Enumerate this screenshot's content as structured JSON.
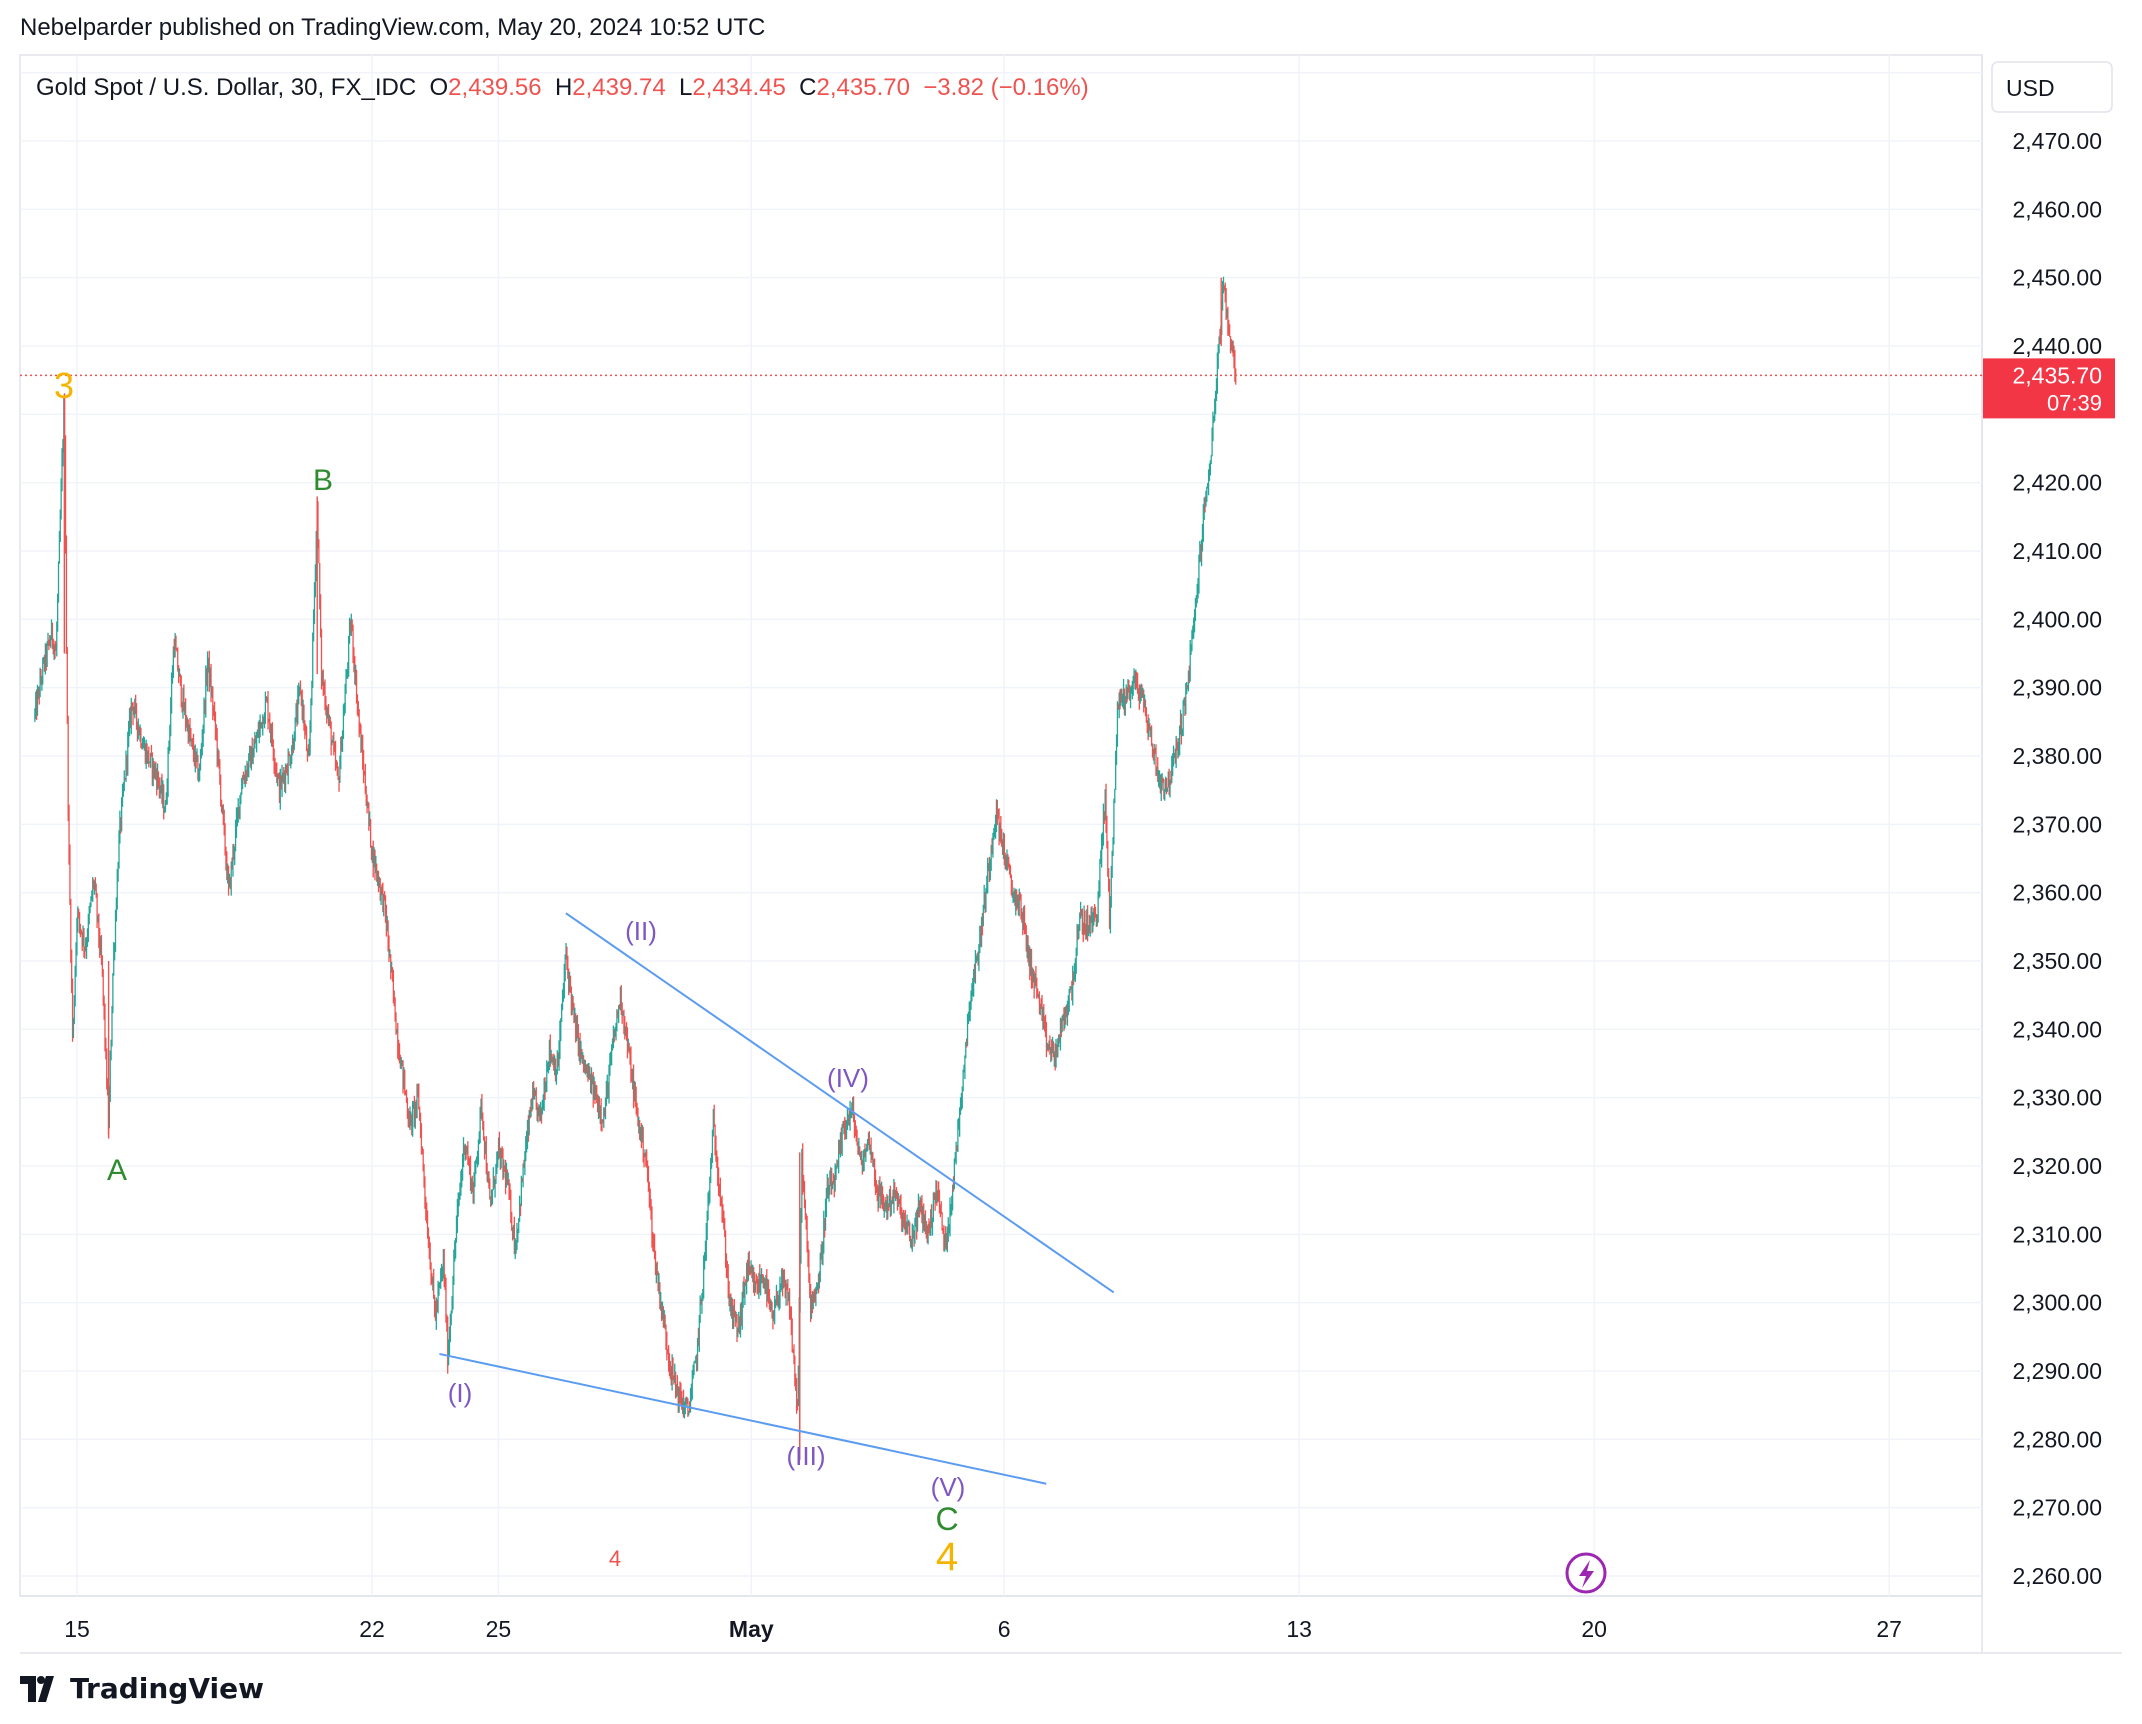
{
  "header": {
    "published_line": "Nebelparder published on TradingView.com, May 20, 2024 10:52 UTC"
  },
  "legend": {
    "symbol": "Gold Spot / U.S. Dollar, 30, FX_IDC",
    "o_label": "O",
    "o_value": "2,439.56",
    "h_label": "H",
    "h_value": "2,439.74",
    "l_label": "L",
    "l_value": "2,434.45",
    "c_label": "C",
    "c_value": "2,435.70",
    "change": "−3.82 (−0.16%)"
  },
  "currency": "USD",
  "price_tag": {
    "price": "2,435.70",
    "countdown": "07:39"
  },
  "footer": {
    "brand": "TradingView"
  },
  "colors": {
    "up": "#26a69a",
    "down": "#ef5350",
    "trendline": "#5b9cf0",
    "wave_purple": "#7e57c2",
    "wave_green": "#2e8b2e",
    "wave_orange": "#f5b400",
    "red_marker": "#ef5350"
  },
  "chart_data": {
    "type": "candlestick",
    "title": "Gold Spot / U.S. Dollar, 30, FX_IDC",
    "y_axis": {
      "min": 2258,
      "max": 2480,
      "ticks": [
        "2,470.00",
        "2,460.00",
        "2,450.00",
        "2,440.00",
        "2,420.00",
        "2,410.00",
        "2,400.00",
        "2,390.00",
        "2,380.00",
        "2,370.00",
        "2,360.00",
        "2,350.00",
        "2,340.00",
        "2,330.00",
        "2,320.00",
        "2,310.00",
        "2,300.00",
        "2,290.00",
        "2,280.00",
        "2,270.00",
        "2,260.00"
      ],
      "tick_values": [
        2470,
        2460,
        2450,
        2440,
        2420,
        2410,
        2400,
        2390,
        2380,
        2370,
        2360,
        2350,
        2340,
        2330,
        2320,
        2310,
        2300,
        2290,
        2280,
        2270,
        2260
      ]
    },
    "x_axis": {
      "ticks": [
        {
          "label": "15",
          "day": 15
        },
        {
          "label": "22",
          "day": 22
        },
        {
          "label": "25",
          "day": 25
        },
        {
          "label": "May",
          "day": 31
        },
        {
          "label": "6",
          "day": 37
        },
        {
          "label": "13",
          "day": 44
        },
        {
          "label": "20",
          "day": 51
        },
        {
          "label": "27",
          "day": 58
        }
      ]
    },
    "grid": true,
    "last_price": 2435.7,
    "price_path": [
      [
        14.0,
        2386
      ],
      [
        14.2,
        2393
      ],
      [
        14.4,
        2398
      ],
      [
        14.5,
        2395
      ],
      [
        14.7,
        2433
      ],
      [
        14.75,
        2395
      ],
      [
        14.8,
        2368
      ],
      [
        14.9,
        2338
      ],
      [
        15.0,
        2357
      ],
      [
        15.2,
        2352
      ],
      [
        15.4,
        2362
      ],
      [
        15.6,
        2348
      ],
      [
        15.75,
        2326
      ],
      [
        15.85,
        2348
      ],
      [
        16.0,
        2368
      ],
      [
        16.3,
        2388
      ],
      [
        16.6,
        2381
      ],
      [
        16.9,
        2377
      ],
      [
        17.1,
        2372
      ],
      [
        17.3,
        2397
      ],
      [
        17.5,
        2388
      ],
      [
        17.7,
        2382
      ],
      [
        17.9,
        2377
      ],
      [
        18.1,
        2394
      ],
      [
        18.3,
        2383
      ],
      [
        18.6,
        2360
      ],
      [
        18.9,
        2376
      ],
      [
        19.2,
        2381
      ],
      [
        19.5,
        2388
      ],
      [
        19.8,
        2375
      ],
      [
        20.1,
        2381
      ],
      [
        20.3,
        2390
      ],
      [
        20.5,
        2378
      ],
      [
        20.7,
        2417
      ],
      [
        20.8,
        2392
      ],
      [
        21.0,
        2384
      ],
      [
        21.2,
        2376
      ],
      [
        21.5,
        2400
      ],
      [
        21.7,
        2384
      ],
      [
        22.0,
        2366
      ],
      [
        22.3,
        2358
      ],
      [
        22.6,
        2339
      ],
      [
        22.9,
        2326
      ],
      [
        23.1,
        2330
      ],
      [
        23.3,
        2312
      ],
      [
        23.5,
        2298
      ],
      [
        23.7,
        2306
      ],
      [
        23.8,
        2292
      ],
      [
        24.0,
        2311
      ],
      [
        24.2,
        2324
      ],
      [
        24.4,
        2316
      ],
      [
        24.6,
        2329
      ],
      [
        24.8,
        2314
      ],
      [
        25.0,
        2322
      ],
      [
        25.2,
        2318
      ],
      [
        25.4,
        2308
      ],
      [
        25.6,
        2320
      ],
      [
        25.8,
        2330
      ],
      [
        26.0,
        2327
      ],
      [
        26.2,
        2337
      ],
      [
        26.4,
        2334
      ],
      [
        26.6,
        2351
      ],
      [
        26.8,
        2341
      ],
      [
        27.0,
        2335
      ],
      [
        27.2,
        2332
      ],
      [
        27.5,
        2327
      ],
      [
        27.7,
        2337
      ],
      [
        27.9,
        2345
      ],
      [
        28.1,
        2336
      ],
      [
        28.3,
        2327
      ],
      [
        28.5,
        2321
      ],
      [
        28.7,
        2307
      ],
      [
        28.9,
        2298
      ],
      [
        29.1,
        2290
      ],
      [
        29.3,
        2286
      ],
      [
        29.5,
        2284
      ],
      [
        29.7,
        2292
      ],
      [
        29.9,
        2307
      ],
      [
        30.1,
        2326
      ],
      [
        30.3,
        2314
      ],
      [
        30.5,
        2299
      ],
      [
        30.7,
        2296
      ],
      [
        30.9,
        2305
      ],
      [
        31.1,
        2302
      ],
      [
        31.3,
        2304
      ],
      [
        31.5,
        2297
      ],
      [
        31.7,
        2303
      ],
      [
        31.9,
        2300
      ],
      [
        32.1,
        2284
      ],
      [
        32.2,
        2321
      ],
      [
        32.4,
        2300
      ],
      [
        32.6,
        2303
      ],
      [
        32.8,
        2316
      ],
      [
        33.0,
        2318
      ],
      [
        33.2,
        2326
      ],
      [
        33.4,
        2328
      ],
      [
        33.6,
        2320
      ],
      [
        33.8,
        2324
      ],
      [
        34.0,
        2316
      ],
      [
        34.2,
        2314
      ],
      [
        34.4,
        2316
      ],
      [
        34.6,
        2312
      ],
      [
        34.8,
        2309
      ],
      [
        35.0,
        2314
      ],
      [
        35.2,
        2310
      ],
      [
        35.4,
        2317
      ],
      [
        35.6,
        2308
      ],
      [
        35.8,
        2318
      ],
      [
        36.0,
        2332
      ],
      [
        36.2,
        2345
      ],
      [
        36.4,
        2352
      ],
      [
        36.6,
        2362
      ],
      [
        36.8,
        2372
      ],
      [
        37.0,
        2366
      ],
      [
        37.2,
        2360
      ],
      [
        37.4,
        2358
      ],
      [
        37.6,
        2350
      ],
      [
        37.8,
        2345
      ],
      [
        38.0,
        2338
      ],
      [
        38.2,
        2336
      ],
      [
        38.4,
        2341
      ],
      [
        38.6,
        2346
      ],
      [
        38.8,
        2356
      ],
      [
        39.0,
        2355
      ],
      [
        39.2,
        2357
      ],
      [
        39.4,
        2374
      ],
      [
        39.5,
        2356
      ],
      [
        39.7,
        2388
      ],
      [
        39.9,
        2389
      ],
      [
        40.1,
        2391
      ],
      [
        40.3,
        2388
      ],
      [
        40.5,
        2382
      ],
      [
        40.7,
        2376
      ],
      [
        40.9,
        2376
      ],
      [
        41.1,
        2381
      ],
      [
        41.3,
        2388
      ],
      [
        41.5,
        2399
      ],
      [
        41.7,
        2413
      ],
      [
        41.9,
        2424
      ],
      [
        42.1,
        2440
      ],
      [
        42.2,
        2448
      ],
      [
        42.4,
        2440
      ],
      [
        42.5,
        2435.7
      ]
    ]
  }
}
